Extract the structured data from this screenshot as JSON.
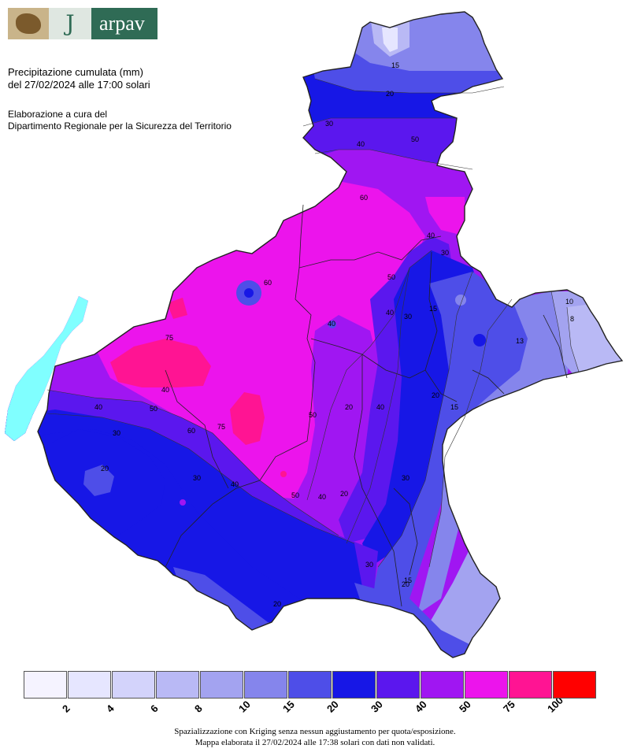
{
  "logo": {
    "text": "arpav"
  },
  "header": {
    "title_line1": "Precipitazione cumulata (mm)",
    "title_line2": "del 27/02/2024 alle 17:00 solari",
    "credit_line1": "Elaborazione a cura del",
    "credit_line2": "Dipartimento Regionale per la Sicurezza del Territorio"
  },
  "legend": {
    "classes": [
      {
        "color": "#f5f3ff",
        "label": "2"
      },
      {
        "color": "#e6e6ff",
        "label": "4"
      },
      {
        "color": "#d3d3fb",
        "label": "6"
      },
      {
        "color": "#b9b9f5",
        "label": "8"
      },
      {
        "color": "#a3a3f0",
        "label": "10"
      },
      {
        "color": "#8585ec",
        "label": "15"
      },
      {
        "color": "#4e4ee8",
        "label": "20"
      },
      {
        "color": "#1717e6",
        "label": "30"
      },
      {
        "color": "#5b17ee",
        "label": "40"
      },
      {
        "color": "#a016f2",
        "label": "50"
      },
      {
        "color": "#ec14ec",
        "label": "75"
      },
      {
        "color": "#ff1493",
        "label": "100"
      },
      {
        "color": "#ff0000",
        "label": ""
      }
    ]
  },
  "footer": {
    "line1": "Spazializzazione con Kriging senza nessun aggiustamento per quota/esposizione.",
    "line2": "Mappa elaborata il 27/02/2024 alle 17:38 solari con dati non validati."
  },
  "map": {
    "contour_labels": [
      "15",
      "20",
      "30",
      "40",
      "50",
      "60",
      "40",
      "30",
      "50",
      "40",
      "30",
      "20",
      "15",
      "13",
      "10",
      "8",
      "75",
      "40",
      "50",
      "60",
      "40",
      "30",
      "20",
      "60",
      "75",
      "50",
      "40",
      "20",
      "30",
      "40",
      "30",
      "20",
      "15",
      "20",
      "15",
      "20",
      "40",
      "50",
      "30",
      "40"
    ]
  }
}
